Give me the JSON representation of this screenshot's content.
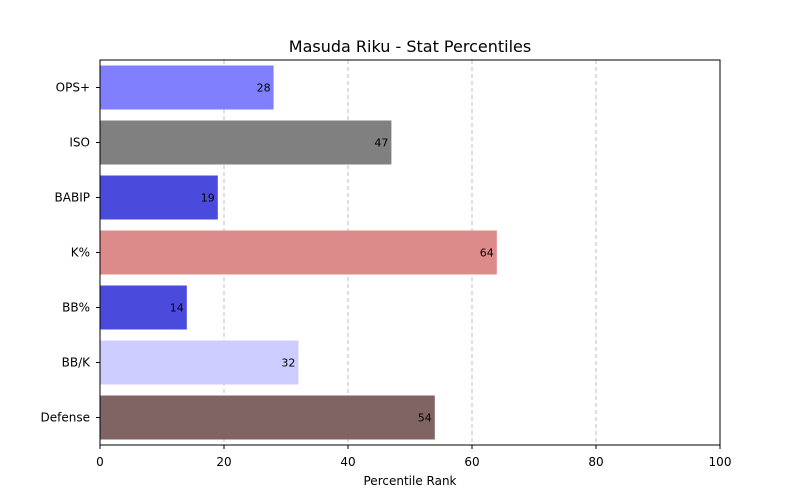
{
  "chart_data": {
    "type": "bar",
    "orientation": "horizontal",
    "title": "Masuda Riku - Stat Percentiles",
    "xlabel": "Percentile Rank",
    "ylabel": "",
    "xlim": [
      0,
      100
    ],
    "x_ticks": [
      0,
      20,
      40,
      60,
      80,
      100
    ],
    "grid": "vertical dashed",
    "categories": [
      "OPS+",
      "ISO",
      "BABIP",
      "K%",
      "BB%",
      "BB/K",
      "Defense"
    ],
    "values": [
      28,
      47,
      19,
      64,
      14,
      32,
      54
    ],
    "colors": [
      "#8080ff",
      "#808080",
      "#4a4add",
      "#dc8a8a",
      "#4a4add",
      "#ccccff",
      "#806464"
    ]
  }
}
